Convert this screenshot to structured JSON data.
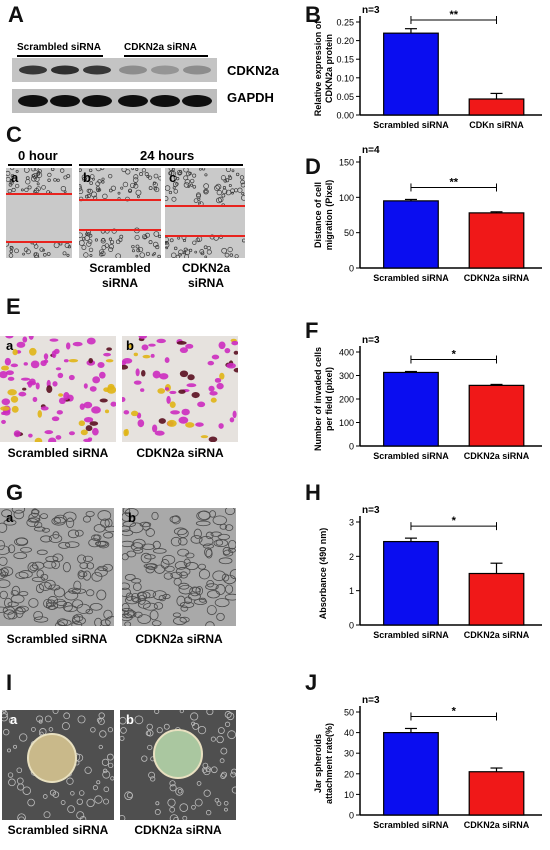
{
  "panel_labels": {
    "A": "A",
    "B": "B",
    "C": "C",
    "D": "D",
    "E": "E",
    "F": "F",
    "G": "G",
    "H": "H",
    "I": "I",
    "J": "J"
  },
  "blot": {
    "lane_group_left": "Scrambled siRNA",
    "lane_group_right": "CDKN2a siRNA",
    "band_top_label": "CDKN2a",
    "band_bottom_label": "GAPDH",
    "band_intensity_top": [
      0.85,
      0.9,
      0.85,
      0.35,
      0.3,
      0.35
    ],
    "band_intensity_bottom": [
      1.0,
      1.0,
      1.0,
      1.0,
      1.0,
      1.0
    ]
  },
  "wound": {
    "header_0h": "0 hour",
    "header_24h": "24 hours",
    "sub_a": "a",
    "sub_b": "b",
    "sub_c": "c",
    "cap_b": "Scrambled siRNA",
    "cap_c": "CDKN2a siRNA",
    "line_color": "#e8231e"
  },
  "invasion": {
    "sub_a": "a",
    "sub_b": "b",
    "cap_a": "Scrambled siRNA",
    "cap_b": "CDKN2a siRNA"
  },
  "proliferation": {
    "sub_a": "a",
    "sub_b": "b",
    "cap_a": "Scrambled siRNA",
    "cap_b": "CDKN2a siRNA"
  },
  "spheroid": {
    "sub_a": "a",
    "sub_b": "b",
    "cap_a": "Scrambled siRNA",
    "cap_b": "CDKN2a siRNA"
  },
  "colors": {
    "blue": "#0a0df0",
    "red": "#f01818"
  },
  "chart_data": [
    {
      "id": "B",
      "type": "bar",
      "categories": [
        "Scrambled siRNA",
        "CDKn siRNA"
      ],
      "values": [
        0.22,
        0.043
      ],
      "errors": [
        0.012,
        0.015
      ],
      "ylabel": "Relative expression of CDKN2a protein",
      "ylim": [
        0,
        0.25
      ],
      "yticks": [
        "0.00",
        "0.05",
        "0.10",
        "0.15",
        "0.20",
        "0.25"
      ],
      "n_label": "n=3",
      "significance": "**"
    },
    {
      "id": "D",
      "type": "bar",
      "categories": [
        "Scrambled siRNA",
        "CDKN2a siRNA"
      ],
      "values": [
        95,
        78
      ],
      "errors": [
        2,
        1.5
      ],
      "ylabel": "Distance of cell migration (Pixel)",
      "ylim": [
        0,
        150
      ],
      "yticks": [
        "0",
        "50",
        "100",
        "150"
      ],
      "n_label": "n=4",
      "significance": "**"
    },
    {
      "id": "F",
      "type": "bar",
      "categories": [
        "Scrambled siRNA",
        "CDKN2a siRNA"
      ],
      "values": [
        313,
        258
      ],
      "errors": [
        4,
        4
      ],
      "ylabel": "Number of invaded cells per field (pixel)",
      "ylim": [
        0,
        400
      ],
      "yticks": [
        "0",
        "100",
        "200",
        "300",
        "400"
      ],
      "n_label": "n=3",
      "significance": "*"
    },
    {
      "id": "H",
      "type": "bar",
      "categories": [
        "Scrambled siRNA",
        "CDKN2a siRNA"
      ],
      "values": [
        2.43,
        1.5
      ],
      "errors": [
        0.1,
        0.3
      ],
      "ylabel": "Absorbance (490 nm)",
      "ylim": [
        0,
        3
      ],
      "yticks": [
        "0",
        "1",
        "2",
        "3"
      ],
      "n_label": "n=3",
      "significance": "*"
    },
    {
      "id": "J",
      "type": "bar",
      "categories": [
        "Scrambled siRNA",
        "CDKN2a siRNA"
      ],
      "values": [
        40,
        21
      ],
      "errors": [
        2,
        1.8
      ],
      "ylabel": "Jar spheroids attachment rate(%)",
      "ylim": [
        0,
        50
      ],
      "yticks": [
        "0",
        "10",
        "20",
        "30",
        "40",
        "50"
      ],
      "n_label": "n=3",
      "significance": "*"
    }
  ]
}
